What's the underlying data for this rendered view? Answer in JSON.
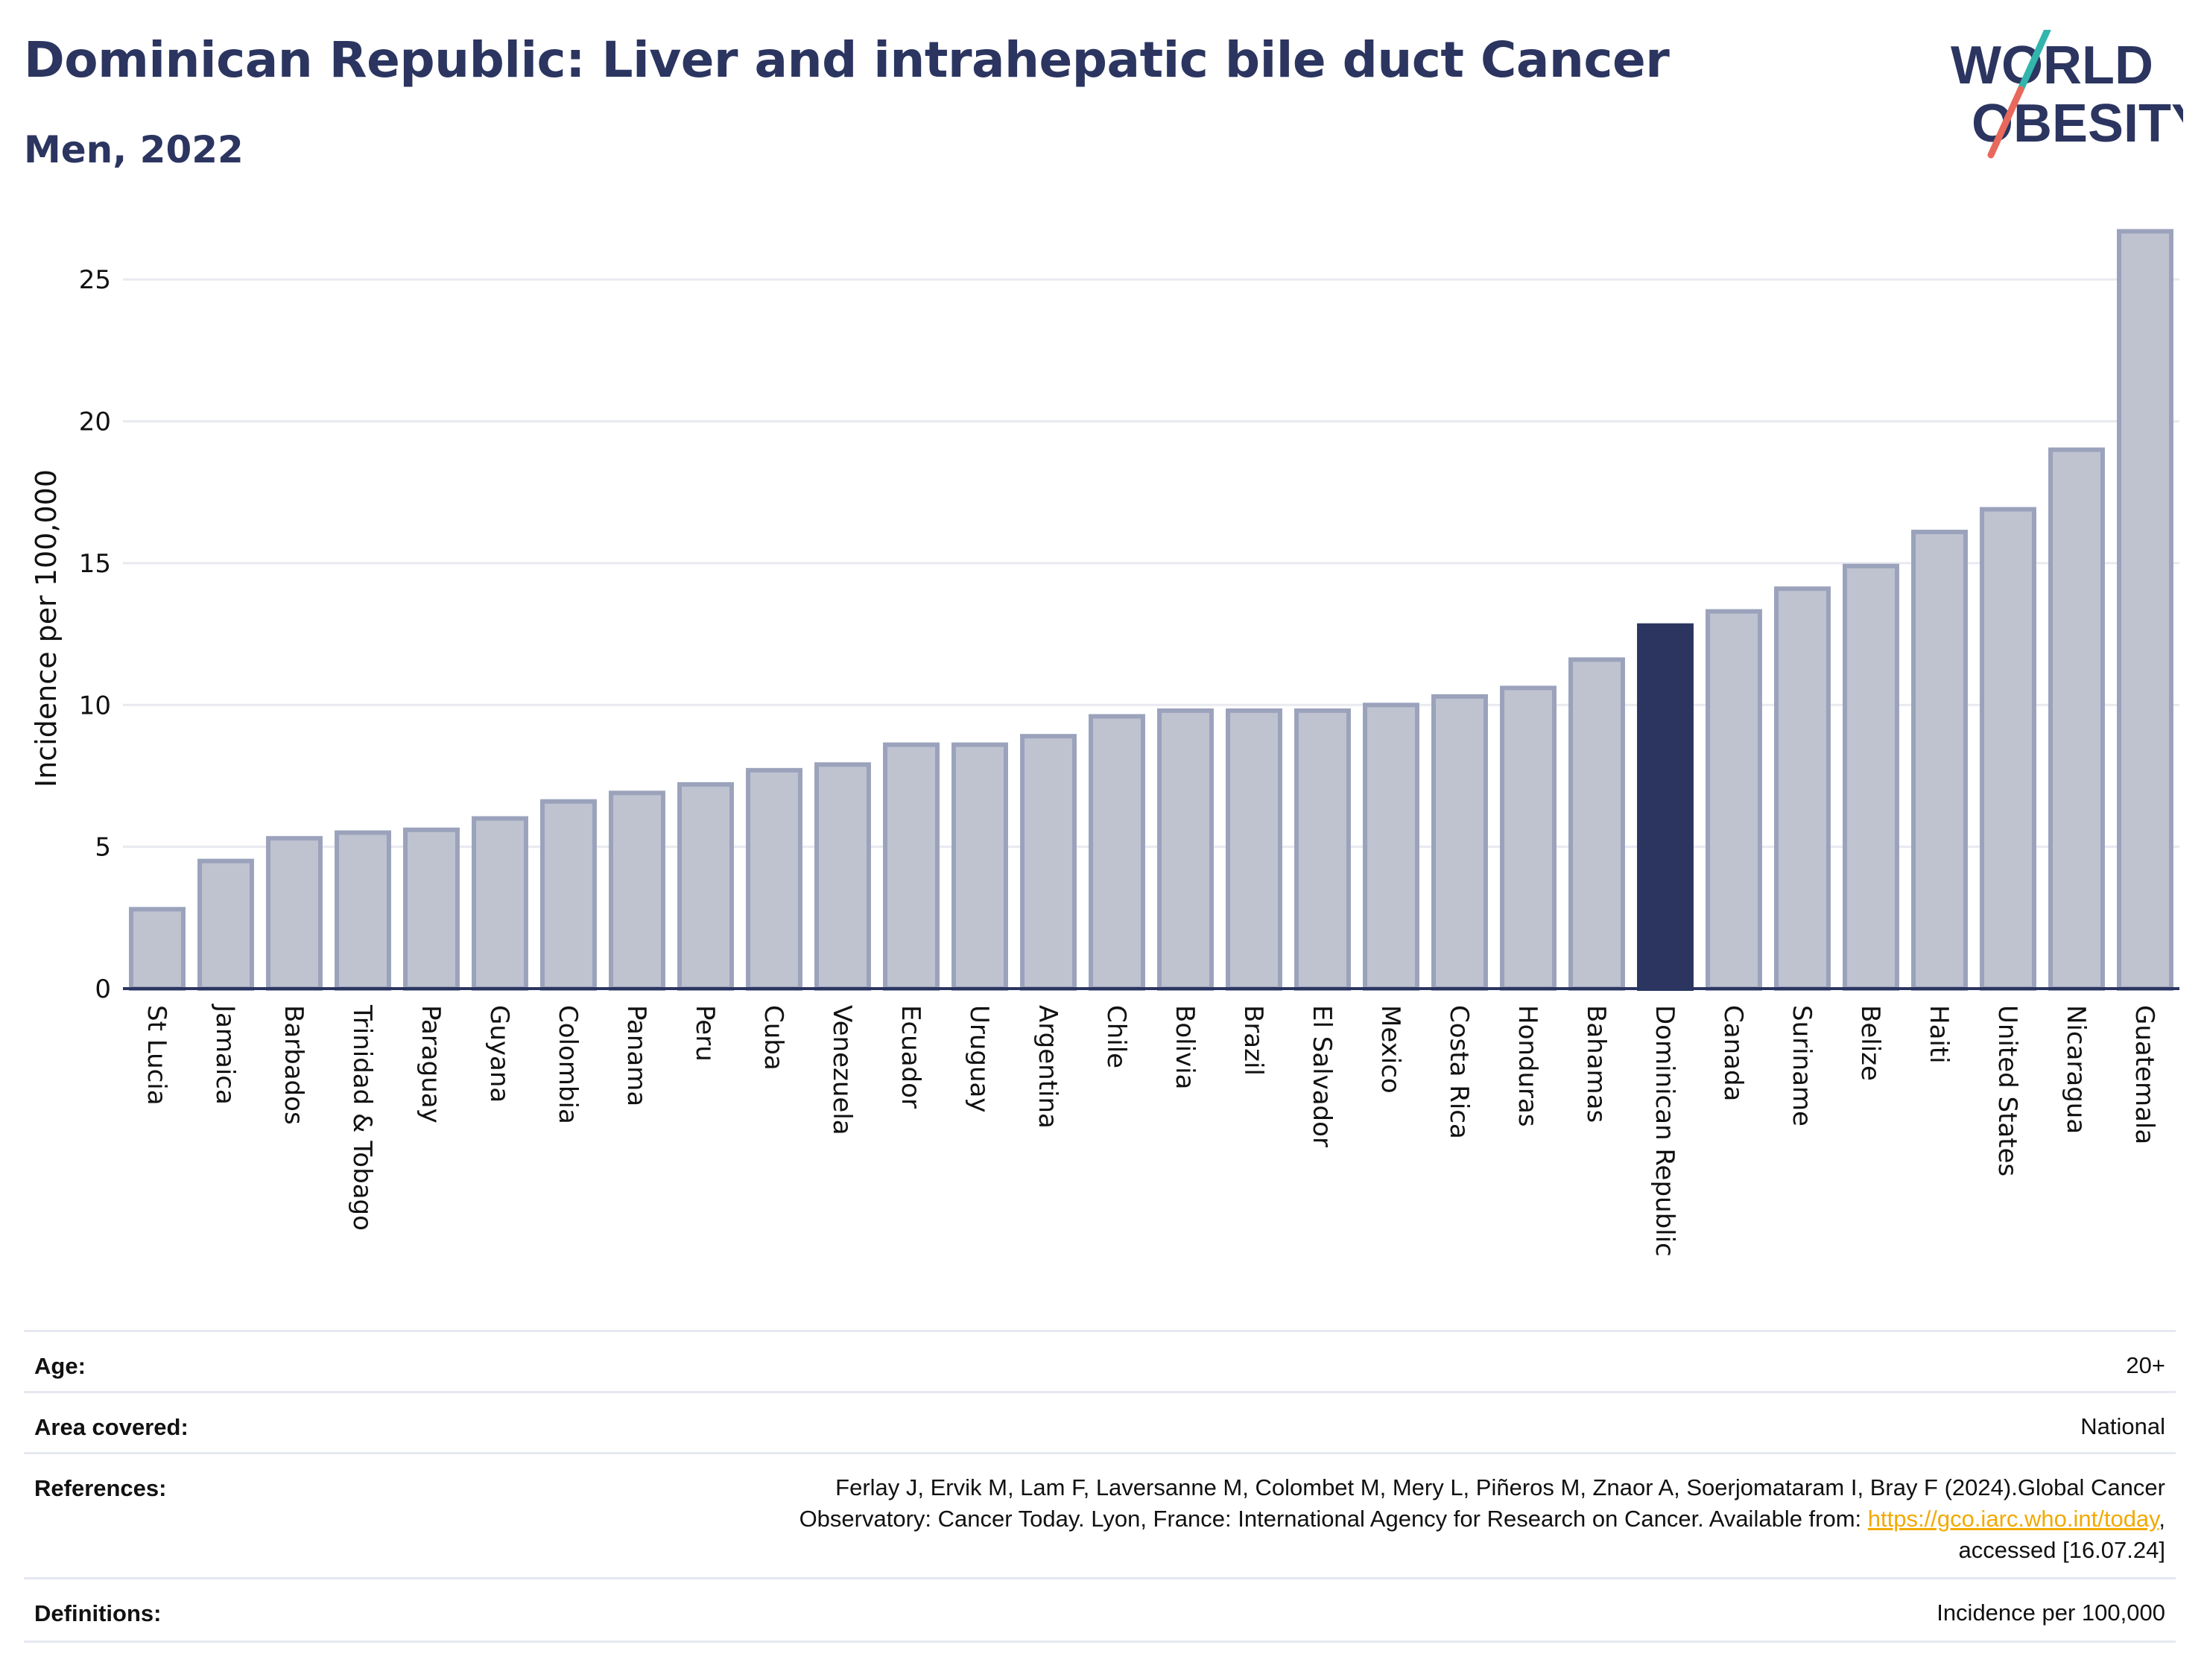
{
  "header": {
    "title": "Dominican Republic: Liver and intrahepatic bile duct Cancer",
    "subtitle": "Men, 2022"
  },
  "logo": {
    "line1": "WORLD",
    "line2": "OBESITY",
    "text_color": "#2b3560",
    "slash_top_color": "#33b5ad",
    "slash_bottom_color": "#e8695c"
  },
  "chart_data": {
    "type": "bar",
    "ylabel": "Incidence per 100,000",
    "ylim": [
      0,
      27.5
    ],
    "yticks": [
      0,
      5,
      10,
      15,
      20,
      25
    ],
    "grid": true,
    "categories": [
      "St Lucia",
      "Jamaica",
      "Barbados",
      "Trinidad & Tobago",
      "Paraguay",
      "Guyana",
      "Colombia",
      "Panama",
      "Peru",
      "Cuba",
      "Venezuela",
      "Ecuador",
      "Uruguay",
      "Argentina",
      "Chile",
      "Bolivia",
      "Brazil",
      "El Salvador",
      "Mexico",
      "Costa Rica",
      "Honduras",
      "Bahamas",
      "Dominican Republic",
      "Canada",
      "Suriname",
      "Belize",
      "Haiti",
      "United States",
      "Nicaragua",
      "Guatemala"
    ],
    "values": [
      2.8,
      4.5,
      5.3,
      5.5,
      5.6,
      6.0,
      6.6,
      6.9,
      7.2,
      7.7,
      7.9,
      8.6,
      8.6,
      8.9,
      9.6,
      9.8,
      9.8,
      9.8,
      10.0,
      10.3,
      10.6,
      11.6,
      12.8,
      13.3,
      14.1,
      14.9,
      16.1,
      16.9,
      19.0,
      26.7
    ],
    "highlight": "Dominican Republic",
    "colors": {
      "bar": "#bfc3d0",
      "bar_edge": "#9ba2bb",
      "highlight": "#2b3560",
      "grid": "#e8eaf0",
      "axis": "#2b3560"
    }
  },
  "meta": {
    "age_label": "Age:",
    "age_value": "20+",
    "area_label": "Area covered:",
    "area_value": "National",
    "references_label": "References:",
    "references_line1": "Ferlay J, Ervik M, Lam F, Laversanne M, Colombet M, Mery L, Piñeros M, Znaor A, Soerjomataram I, Bray F (2024).Global Cancer",
    "references_line2_pre": "Observatory: Cancer Today. Lyon, France: International Agency for Research on Cancer. Available from: ",
    "references_link": "https://gco.iarc.who.int/today",
    "references_line2_post": ",",
    "references_line3": "accessed [16.07.24]",
    "definitions_label": "Definitions:",
    "definitions_value": "Incidence per 100,000"
  }
}
